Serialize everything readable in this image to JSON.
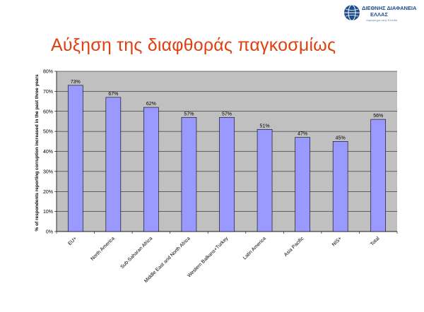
{
  "slide": {
    "title": "Αύξηση της διαφθοράς παγκοσμίως",
    "logo": {
      "line1": "ΔΙΕΘΝΗΣ ΔΙΑΦΑΝΕΙΑ",
      "line2": "ΕΛΛΑΣ",
      "tagline": "παράρτημα στην Ελλάδα",
      "icon": "globe-logo-icon"
    }
  },
  "chart_data": {
    "type": "bar",
    "categories": [
      "EU+",
      "North America",
      "Sub-Saharan Africa",
      "Middle East and North Africa",
      "Western Balkans+Turkey",
      "Latin America",
      "Asia Pacific",
      "NIS+",
      "Total"
    ],
    "values": [
      73,
      67,
      62,
      57,
      57,
      51,
      47,
      45,
      56
    ],
    "data_labels": [
      "73%",
      "67%",
      "62%",
      "57%",
      "57%",
      "51%",
      "47%",
      "45%",
      "56%"
    ],
    "ylabel": "% of respondents reporting corruption increased in the past three years",
    "xlabel": "",
    "ylim": [
      0,
      80
    ],
    "yticks": [
      0,
      10,
      20,
      30,
      40,
      50,
      60,
      70,
      80
    ],
    "ytick_labels": [
      "0%",
      "10%",
      "20%",
      "30%",
      "40%",
      "50%",
      "60%",
      "70%",
      "80%"
    ],
    "grid": true,
    "colors": {
      "bar_fill": "#9999ff",
      "bar_stroke": "#000000",
      "plot_bg": "#c0c0c0",
      "title": "#e0400f"
    }
  }
}
